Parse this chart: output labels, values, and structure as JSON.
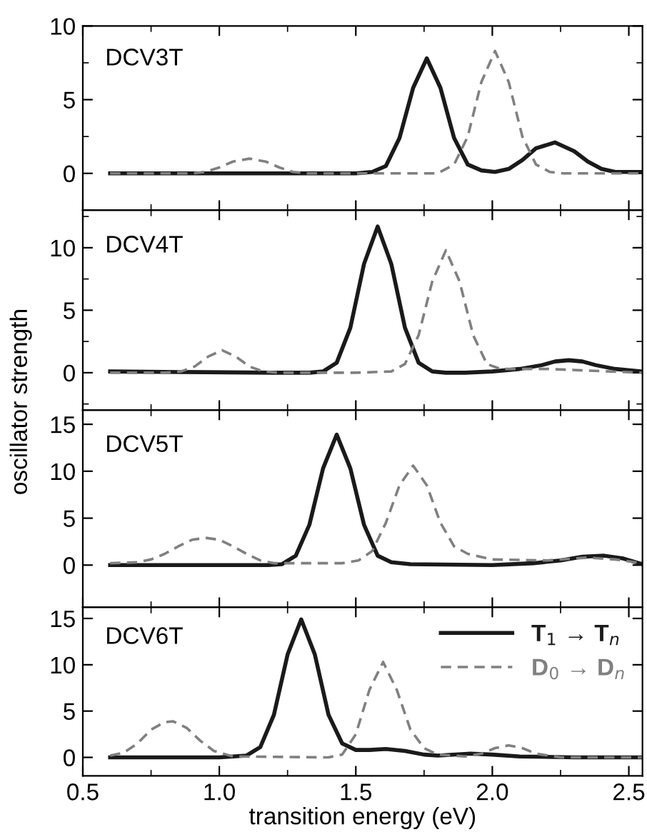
{
  "chart_data": [
    {
      "type": "line",
      "annotations": [
        "DCV3T"
      ],
      "xlim": [
        0.5,
        2.55
      ],
      "ylim": [
        -2.5,
        10
      ],
      "yticks": [
        0,
        5,
        10,
        {
          "value": -2.5,
          "label": null
        },
        {
          "value": 2.5,
          "label": null
        },
        {
          "value": 7.5,
          "label": null
        }
      ],
      "xticks": [
        0.5,
        {
          "value": 0.75,
          "label": null
        },
        1.0,
        {
          "value": 1.25,
          "label": null
        },
        1.5,
        {
          "value": 1.75,
          "label": null
        },
        2.0,
        {
          "value": 2.25,
          "label": null
        },
        2.5
      ],
      "tick_labels": "y",
      "grid": false,
      "legend": false,
      "series": [
        {
          "color": "#1a1a1a",
          "line_style": "solid",
          "x": [
            0.6,
            1.0,
            1.4,
            1.5,
            1.56,
            1.61,
            1.66,
            1.71,
            1.76,
            1.81,
            1.86,
            1.91,
            1.96,
            2.01,
            2.06,
            2.11,
            2.16,
            2.23,
            2.3,
            2.35,
            2.4,
            2.45,
            2.55
          ],
          "values": [
            0,
            0,
            0,
            0,
            0.1,
            0.5,
            2.4,
            5.8,
            7.8,
            5.8,
            2.4,
            0.6,
            0.2,
            0.1,
            0.3,
            0.9,
            1.7,
            2.1,
            1.5,
            0.8,
            0.3,
            0.1,
            0.1
          ]
        },
        {
          "color": "#808080",
          "line_style": "dashed",
          "x": [
            0.6,
            0.9,
            0.95,
            1.0,
            1.05,
            1.11,
            1.17,
            1.22,
            1.27,
            1.32,
            1.8,
            1.86,
            1.91,
            1.96,
            2.01,
            2.06,
            2.11,
            2.16,
            2.21,
            2.26,
            2.4,
            2.55
          ],
          "values": [
            0,
            0,
            0.1,
            0.4,
            0.8,
            1.0,
            0.8,
            0.4,
            0.1,
            0,
            0,
            0.6,
            2.5,
            6.2,
            8.3,
            6.2,
            2.5,
            0.6,
            0.1,
            0,
            0,
            0
          ]
        }
      ]
    },
    {
      "type": "line",
      "annotations": [
        "DCV4T"
      ],
      "ylabel": "oscillator strength",
      "xlim": [
        0.5,
        2.55
      ],
      "ylim": [
        -3,
        13
      ],
      "yticks": [
        0,
        5,
        10,
        {
          "value": -2.5,
          "label": null
        },
        {
          "value": 2.5,
          "label": null
        },
        {
          "value": 7.5,
          "label": null
        },
        {
          "value": 12.5,
          "label": null
        }
      ],
      "xticks": [
        0.5,
        {
          "value": 0.75,
          "label": null
        },
        1.0,
        {
          "value": 1.25,
          "label": null
        },
        1.5,
        {
          "value": 1.75,
          "label": null
        },
        2.0,
        {
          "value": 2.25,
          "label": null
        },
        2.5
      ],
      "tick_labels": "y",
      "grid": false,
      "legend": false,
      "series": [
        {
          "color": "#1a1a1a",
          "line_style": "solid",
          "x": [
            0.6,
            1.2,
            1.33,
            1.38,
            1.43,
            1.48,
            1.53,
            1.58,
            1.63,
            1.68,
            1.73,
            1.78,
            1.83,
            1.9,
            2.0,
            2.1,
            2.18,
            2.23,
            2.28,
            2.33,
            2.38,
            2.45,
            2.55
          ],
          "values": [
            0.1,
            0,
            0,
            0.1,
            0.8,
            3.6,
            8.7,
            11.7,
            8.7,
            3.6,
            0.8,
            0.1,
            0,
            0,
            0.1,
            0.3,
            0.6,
            0.9,
            1.0,
            0.9,
            0.6,
            0.3,
            0.1
          ]
        },
        {
          "color": "#808080",
          "line_style": "dashed",
          "x": [
            0.6,
            0.8,
            0.86,
            0.91,
            0.96,
            1.01,
            1.06,
            1.11,
            1.16,
            1.22,
            1.5,
            1.63,
            1.68,
            1.73,
            1.78,
            1.83,
            1.88,
            1.93,
            1.98,
            2.03,
            2.2,
            2.55
          ],
          "values": [
            0,
            0,
            0.1,
            0.5,
            1.3,
            1.8,
            1.3,
            0.5,
            0.1,
            0,
            0,
            0.1,
            0.7,
            3,
            7.3,
            9.8,
            7.3,
            3,
            0.7,
            0.3,
            0.3,
            0
          ]
        }
      ]
    },
    {
      "type": "line",
      "annotations": [
        "DCV5T"
      ],
      "xlim": [
        0.5,
        2.55
      ],
      "ylim": [
        -4.5,
        16.5
      ],
      "yticks": [
        0,
        5,
        10,
        15
      ],
      "xticks": [
        0.5,
        {
          "value": 0.75,
          "label": null
        },
        1.0,
        {
          "value": 1.25,
          "label": null
        },
        1.5,
        {
          "value": 1.75,
          "label": null
        },
        2.0,
        {
          "value": 2.25,
          "label": null
        },
        2.5
      ],
      "tick_labels": "y",
      "grid": false,
      "legend": false,
      "series": [
        {
          "color": "#1a1a1a",
          "line_style": "solid",
          "x": [
            0.6,
            1.1,
            1.18,
            1.23,
            1.28,
            1.33,
            1.38,
            1.43,
            1.48,
            1.53,
            1.58,
            1.63,
            1.7,
            2.0,
            2.15,
            2.25,
            2.33,
            2.41,
            2.48,
            2.55
          ],
          "values": [
            0,
            0,
            0,
            0.1,
            1.0,
            4.3,
            10.3,
            13.9,
            10.3,
            4.3,
            1.0,
            0.3,
            0.1,
            0,
            0.2,
            0.5,
            0.9,
            1.0,
            0.7,
            0.1
          ]
        },
        {
          "color": "#808080",
          "line_style": "dashed",
          "x": [
            0.6,
            0.7,
            0.75,
            0.8,
            0.85,
            0.9,
            0.95,
            1.0,
            1.05,
            1.1,
            1.15,
            1.2,
            1.45,
            1.51,
            1.56,
            1.61,
            1.66,
            1.71,
            1.76,
            1.81,
            1.86,
            1.91,
            2.0,
            2.2,
            2.35,
            2.45,
            2.55
          ],
          "values": [
            0.2,
            0.3,
            0.6,
            1.2,
            2.0,
            2.7,
            2.9,
            2.7,
            2.0,
            1.2,
            0.5,
            0.2,
            0.2,
            0.5,
            1.5,
            4.5,
            8.5,
            10.6,
            8.5,
            4.5,
            2.0,
            1.2,
            0.6,
            0.5,
            0.8,
            0.6,
            0.2
          ]
        }
      ]
    },
    {
      "type": "line",
      "annotations": [
        "DCV6T"
      ],
      "xlabel": "transition energy (eV)",
      "xlim": [
        0.5,
        2.55
      ],
      "ylim": [
        -2,
        16.2
      ],
      "yticks": [
        0,
        5,
        10,
        15
      ],
      "xticks": [
        0.5,
        {
          "value": 0.75,
          "label": null
        },
        {
          "value": 1.0,
          "label": "1.0"
        },
        {
          "value": 1.25,
          "label": null
        },
        1.5,
        {
          "value": 1.75,
          "label": null
        },
        {
          "value": 2.0,
          "label": "2.0"
        },
        {
          "value": 2.25,
          "label": null
        },
        2.5
      ],
      "grid": false,
      "legend": "top right",
      "series": [
        {
          "name": "T$_{1}$ → T$_{n}$",
          "color": "#1a1a1a",
          "line_style": "solid",
          "x": [
            0.6,
            1.0,
            1.1,
            1.15,
            1.2,
            1.25,
            1.3,
            1.35,
            1.4,
            1.45,
            1.5,
            1.55,
            1.61,
            1.68,
            1.75,
            1.8,
            1.92,
            2.0,
            2.1,
            2.3,
            2.55
          ],
          "values": [
            0,
            0,
            0.2,
            1.1,
            4.6,
            11.1,
            14.9,
            11.1,
            4.6,
            1.5,
            0.8,
            0.8,
            0.9,
            0.7,
            0.3,
            0.2,
            0.4,
            0.3,
            0.1,
            0,
            0
          ]
        },
        {
          "name": "D$_{0}$ → D$_{n}$",
          "color": "#808080",
          "line_style": "dashed",
          "x": [
            0.6,
            0.65,
            0.7,
            0.75,
            0.8,
            0.83,
            0.88,
            0.93,
            0.98,
            1.05,
            1.4,
            1.45,
            1.5,
            1.55,
            1.6,
            1.65,
            1.7,
            1.75,
            1.8,
            1.9,
            1.96,
            2.01,
            2.06,
            2.11,
            2.16,
            2.25,
            2.55
          ],
          "values": [
            0.2,
            0.5,
            1.5,
            3.0,
            3.8,
            3.9,
            3.2,
            1.8,
            0.7,
            0.1,
            0,
            0.3,
            2.5,
            7.3,
            10.3,
            7.3,
            3.0,
            1.0,
            0.3,
            0.1,
            0.4,
            1.0,
            1.3,
            1.0,
            0.4,
            0,
            0
          ]
        }
      ]
    }
  ]
}
